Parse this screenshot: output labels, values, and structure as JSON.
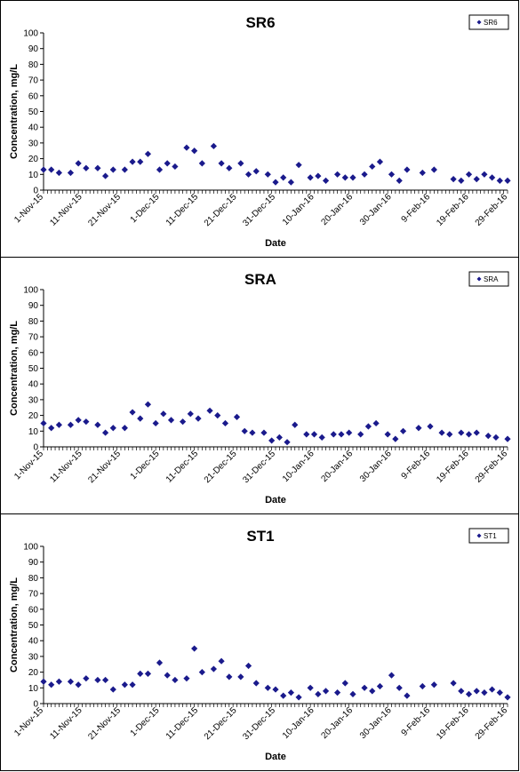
{
  "chart_data": [
    {
      "type": "scatter",
      "title": "SR6",
      "xlabel": "Date",
      "ylabel": "Concentration, mg/L",
      "ylim": [
        0,
        100
      ],
      "yticks": [
        0,
        10,
        20,
        30,
        40,
        50,
        60,
        70,
        80,
        90,
        100
      ],
      "xlim": [
        "2015-11-01",
        "2016-02-29"
      ],
      "xticks": [
        "1-Nov-15",
        "11-Nov-15",
        "21-Nov-15",
        "1-Dec-15",
        "11-Dec-15",
        "21-Dec-15",
        "31-Dec-15",
        "10-Jan-16",
        "20-Jan-16",
        "30-Jan-16",
        "9-Feb-16",
        "19-Feb-16",
        "29-Feb-16"
      ],
      "grid": false,
      "legend": "top-right",
      "marker_color": "#1a1a8c",
      "series": [
        {
          "name": "SR6",
          "x": [
            "2015-11-01",
            "2015-11-03",
            "2015-11-05",
            "2015-11-08",
            "2015-11-10",
            "2015-11-12",
            "2015-11-15",
            "2015-11-17",
            "2015-11-19",
            "2015-11-22",
            "2015-11-24",
            "2015-11-26",
            "2015-11-28",
            "2015-12-01",
            "2015-12-03",
            "2015-12-05",
            "2015-12-08",
            "2015-12-10",
            "2015-12-12",
            "2015-12-15",
            "2015-12-17",
            "2015-12-19",
            "2015-12-22",
            "2015-12-24",
            "2015-12-26",
            "2015-12-29",
            "2015-12-31",
            "2016-01-02",
            "2016-01-04",
            "2016-01-06",
            "2016-01-09",
            "2016-01-11",
            "2016-01-13",
            "2016-01-16",
            "2016-01-18",
            "2016-01-20",
            "2016-01-23",
            "2016-01-25",
            "2016-01-27",
            "2016-01-30",
            "2016-02-01",
            "2016-02-03",
            "2016-02-07",
            "2016-02-10",
            "2016-02-15",
            "2016-02-17",
            "2016-02-19",
            "2016-02-21",
            "2016-02-23",
            "2016-02-25",
            "2016-02-27",
            "2016-02-29"
          ],
          "y": [
            13,
            13,
            11,
            11,
            17,
            14,
            14,
            9,
            13,
            13,
            18,
            18,
            23,
            13,
            17,
            15,
            27,
            25,
            17,
            28,
            17,
            14,
            17,
            10,
            12,
            10,
            5,
            8,
            5,
            16,
            8,
            9,
            6,
            10,
            8,
            8,
            10,
            15,
            18,
            10,
            6,
            13,
            11,
            13,
            7,
            6,
            10,
            7,
            10,
            8,
            6,
            6
          ]
        }
      ]
    },
    {
      "type": "scatter",
      "title": "SRA",
      "xlabel": "Date",
      "ylabel": "Concentration, mg/L",
      "ylim": [
        0,
        100
      ],
      "yticks": [
        0,
        10,
        20,
        30,
        40,
        50,
        60,
        70,
        80,
        90,
        100
      ],
      "xlim": [
        "2015-11-01",
        "2016-02-29"
      ],
      "xticks": [
        "1-Nov-15",
        "11-Nov-15",
        "21-Nov-15",
        "1-Dec-15",
        "11-Dec-15",
        "21-Dec-15",
        "31-Dec-15",
        "10-Jan-16",
        "20-Jan-16",
        "30-Jan-16",
        "9-Feb-16",
        "19-Feb-16",
        "29-Feb-16"
      ],
      "grid": false,
      "legend": "top-right",
      "marker_color": "#1a1a8c",
      "series": [
        {
          "name": "SRA",
          "x": [
            "2015-11-01",
            "2015-11-03",
            "2015-11-05",
            "2015-11-08",
            "2015-11-10",
            "2015-11-12",
            "2015-11-15",
            "2015-11-17",
            "2015-11-19",
            "2015-11-22",
            "2015-11-24",
            "2015-11-26",
            "2015-11-28",
            "2015-11-30",
            "2015-12-02",
            "2015-12-04",
            "2015-12-07",
            "2015-12-09",
            "2015-12-11",
            "2015-12-14",
            "2015-12-16",
            "2015-12-18",
            "2015-12-21",
            "2015-12-23",
            "2015-12-25",
            "2015-12-28",
            "2015-12-30",
            "2016-01-01",
            "2016-01-03",
            "2016-01-05",
            "2016-01-08",
            "2016-01-10",
            "2016-01-12",
            "2016-01-15",
            "2016-01-17",
            "2016-01-19",
            "2016-01-22",
            "2016-01-24",
            "2016-01-26",
            "2016-01-29",
            "2016-01-31",
            "2016-02-02",
            "2016-02-06",
            "2016-02-09",
            "2016-02-12",
            "2016-02-14",
            "2016-02-17",
            "2016-02-19",
            "2016-02-21",
            "2016-02-24",
            "2016-02-26",
            "2016-02-29"
          ],
          "y": [
            15,
            12,
            14,
            14,
            17,
            16,
            14,
            9,
            12,
            12,
            22,
            18,
            27,
            15,
            21,
            17,
            16,
            21,
            18,
            23,
            20,
            15,
            19,
            10,
            9,
            9,
            4,
            6,
            3,
            14,
            8,
            8,
            6,
            8,
            8,
            9,
            8,
            13,
            15,
            8,
            5,
            10,
            12,
            13,
            9,
            8,
            9,
            8,
            9,
            7,
            6,
            5
          ]
        }
      ]
    },
    {
      "type": "scatter",
      "title": "ST1",
      "xlabel": "Date",
      "ylabel": "Concentration, mg/L",
      "ylim": [
        0,
        100
      ],
      "yticks": [
        0,
        10,
        20,
        30,
        40,
        50,
        60,
        70,
        80,
        90,
        100
      ],
      "xlim": [
        "2015-11-01",
        "2016-02-29"
      ],
      "xticks": [
        "1-Nov-15",
        "11-Nov-15",
        "21-Nov-15",
        "1-Dec-15",
        "11-Dec-15",
        "21-Dec-15",
        "31-Dec-15",
        "10-Jan-16",
        "20-Jan-16",
        "30-Jan-16",
        "9-Feb-16",
        "19-Feb-16",
        "29-Feb-16"
      ],
      "grid": false,
      "legend": "top-right",
      "marker_color": "#1a1a8c",
      "series": [
        {
          "name": "ST1",
          "x": [
            "2015-11-01",
            "2015-11-03",
            "2015-11-05",
            "2015-11-08",
            "2015-11-10",
            "2015-11-12",
            "2015-11-15",
            "2015-11-17",
            "2015-11-19",
            "2015-11-22",
            "2015-11-24",
            "2015-11-26",
            "2015-11-28",
            "2015-12-01",
            "2015-12-03",
            "2015-12-05",
            "2015-12-08",
            "2015-12-10",
            "2015-12-12",
            "2015-12-15",
            "2015-12-17",
            "2015-12-19",
            "2015-12-22",
            "2015-12-24",
            "2015-12-26",
            "2015-12-29",
            "2015-12-31",
            "2016-01-02",
            "2016-01-04",
            "2016-01-06",
            "2016-01-09",
            "2016-01-11",
            "2016-01-13",
            "2016-01-16",
            "2016-01-18",
            "2016-01-20",
            "2016-01-23",
            "2016-01-25",
            "2016-01-27",
            "2016-01-30",
            "2016-02-01",
            "2016-02-03",
            "2016-02-07",
            "2016-02-10",
            "2016-02-15",
            "2016-02-17",
            "2016-02-19",
            "2016-02-21",
            "2016-02-23",
            "2016-02-25",
            "2016-02-27",
            "2016-02-29"
          ],
          "y": [
            14,
            12,
            14,
            14,
            12,
            16,
            15,
            15,
            9,
            12,
            12,
            19,
            19,
            26,
            18,
            15,
            16,
            35,
            20,
            22,
            27,
            17,
            17,
            24,
            13,
            10,
            9,
            5,
            7,
            4,
            10,
            6,
            8,
            7,
            13,
            6,
            10,
            8,
            11,
            18,
            10,
            5,
            11,
            12,
            13,
            8,
            6,
            8,
            7,
            9,
            7,
            4
          ]
        }
      ]
    }
  ]
}
